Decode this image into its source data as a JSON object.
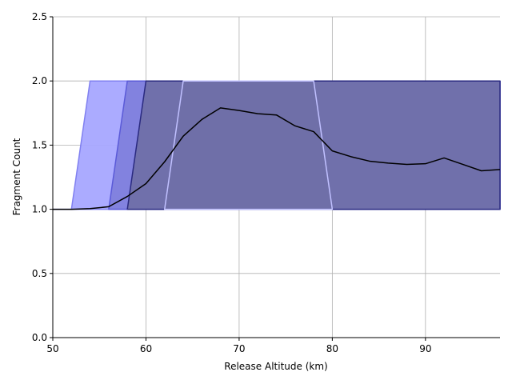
{
  "chart_data": {
    "type": "area",
    "title": "",
    "xlabel": "Release Altitude (km)",
    "ylabel": "Fragment Count",
    "xlim": [
      50,
      98
    ],
    "ylim": [
      0,
      2.5
    ],
    "xticks": [
      50,
      60,
      70,
      80,
      90
    ],
    "yticks": [
      0.0,
      0.5,
      1.0,
      1.5,
      2.0,
      2.5
    ],
    "grid": true,
    "bands": [
      {
        "fill": "#a6a6ff",
        "edge": "#8080f0",
        "upper": [
          [
            50,
            1.0
          ],
          [
            52,
            1.0
          ],
          [
            54,
            2.0
          ],
          [
            98,
            2.0
          ]
        ],
        "lower": [
          [
            50,
            1.0
          ],
          [
            98,
            1.0
          ]
        ]
      },
      {
        "fill": "#8080dd",
        "edge": "#5a5ad8",
        "upper": [
          [
            56,
            1.0
          ],
          [
            58,
            2.0
          ],
          [
            98,
            2.0
          ]
        ],
        "lower": [
          [
            56,
            1.0
          ],
          [
            98,
            1.0
          ]
        ]
      },
      {
        "fill": "#6f6fa8",
        "edge": "#2a2a80",
        "upper": [
          [
            58,
            1.0
          ],
          [
            60,
            2.0
          ],
          [
            98,
            2.0
          ]
        ],
        "lower": [
          [
            58,
            1.0
          ],
          [
            98,
            1.0
          ]
        ]
      },
      {
        "fill": "#6f6fa8",
        "edge": "#c0c0ff",
        "upper": [
          [
            62,
            1.0
          ],
          [
            64,
            2.0
          ],
          [
            78,
            2.0
          ],
          [
            80,
            1.0
          ]
        ],
        "lower": [
          [
            62,
            1.0
          ],
          [
            80,
            1.0
          ]
        ]
      }
    ],
    "series": [
      {
        "color": "#000000",
        "x": [
          50,
          52,
          54,
          56,
          58,
          60,
          62,
          64,
          66,
          68,
          70,
          72,
          74,
          76,
          78,
          80,
          82,
          84,
          86,
          88,
          90,
          92,
          94,
          96,
          98
        ],
        "y": [
          1.0,
          1.0,
          1.005,
          1.02,
          1.1,
          1.2,
          1.37,
          1.57,
          1.7,
          1.79,
          1.77,
          1.745,
          1.735,
          1.65,
          1.605,
          1.455,
          1.41,
          1.375,
          1.36,
          1.35,
          1.355,
          1.4,
          1.35,
          1.3,
          1.31
        ]
      }
    ]
  }
}
